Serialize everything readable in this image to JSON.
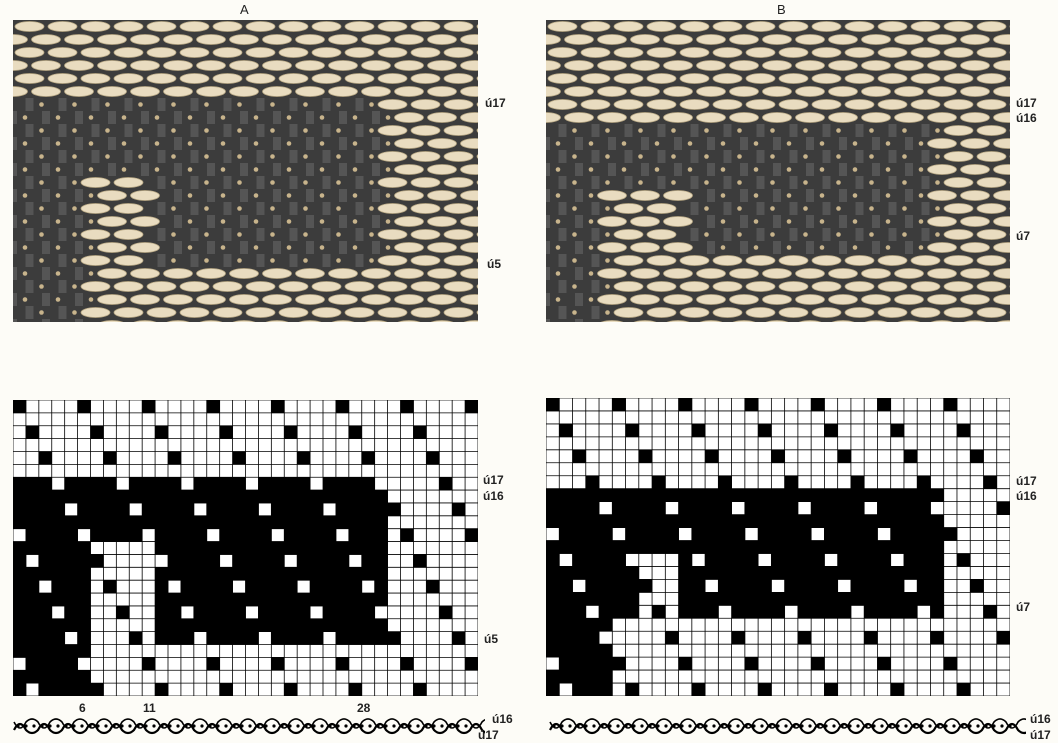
{
  "panels": [
    {
      "letter": "A",
      "photo_labels": [
        "ú17",
        "ú5"
      ],
      "grid_labels": [
        "ú17",
        "ú16",
        "ú5"
      ],
      "column_numbers": [
        "6",
        "11",
        "28"
      ],
      "cross_section_labels": [
        "ú16",
        "ú17"
      ]
    },
    {
      "letter": "B",
      "photo_labels": [
        "ú17",
        "ú16",
        "ú7"
      ],
      "grid_labels": [
        "ú17",
        "ú16",
        "ú7"
      ],
      "cross_section_labels": [
        "ú16",
        "ú17"
      ]
    }
  ],
  "colors": {
    "weft": "#e9dcc0",
    "weft_shadow": "#b7a783",
    "warp": "#3c3c3c",
    "grid_fill": "#000000",
    "grid_line": "#000000"
  }
}
